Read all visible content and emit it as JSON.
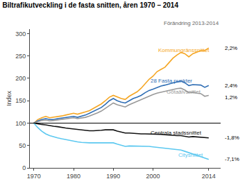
{
  "chart_data": {
    "type": "line",
    "title": "Biltrafikutveckling i de fasta snitten, åren 1970 – 2014",
    "subtitle": "Förändring 2013-2014",
    "ylabel": "Index",
    "x": [
      1970,
      1971,
      1972,
      1973,
      1974,
      1975,
      1976,
      1977,
      1978,
      1979,
      1980,
      1981,
      1982,
      1983,
      1984,
      1985,
      1986,
      1987,
      1988,
      1989,
      1990,
      1991,
      1992,
      1993,
      1994,
      1995,
      1996,
      1997,
      1998,
      1999,
      2000,
      2001,
      2002,
      2003,
      2004,
      2005,
      2006,
      2007,
      2008,
      2009,
      2010,
      2011,
      2012,
      2013,
      2014
    ],
    "series": [
      {
        "name": "Kommungränssnittet",
        "color": "#f5a623",
        "label": {
          "x": 2001,
          "y": 263
        },
        "change": {
          "text": "2,2%",
          "y": 268
        },
        "values": [
          100,
          108,
          112,
          115,
          112,
          113,
          115,
          116,
          118,
          120,
          122,
          120,
          122,
          125,
          128,
          133,
          138,
          143,
          150,
          158,
          162,
          158,
          155,
          153,
          160,
          165,
          170,
          178,
          188,
          198,
          205,
          215,
          220,
          225,
          235,
          245,
          252,
          258,
          255,
          248,
          255,
          258,
          262,
          262,
          268
        ]
      },
      {
        "name": "28 Fasta punkter",
        "color": "#2e6db4",
        "label": {
          "x": 1999,
          "y": 195
        },
        "change": {
          "text": "2,4%",
          "y": 184
        },
        "values": [
          100,
          105,
          108,
          110,
          108,
          108,
          110,
          111,
          112,
          114,
          115,
          113,
          115,
          118,
          122,
          126,
          130,
          135,
          142,
          150,
          155,
          150,
          147,
          145,
          150,
          155,
          158,
          162,
          168,
          173,
          176,
          180,
          183,
          185,
          188,
          190,
          192,
          194,
          190,
          184,
          186,
          186,
          185,
          180,
          184
        ]
      },
      {
        "name": "Götaälvsnittet",
        "color": "#999999",
        "label": {
          "x": 2003,
          "y": 170
        },
        "change": {
          "text": "1,2%",
          "y": 157
        },
        "values": [
          100,
          103,
          106,
          107,
          105,
          106,
          107,
          108,
          109,
          111,
          112,
          110,
          111,
          113,
          116,
          119,
          123,
          127,
          133,
          140,
          145,
          141,
          138,
          136,
          141,
          145,
          148,
          152,
          157,
          161,
          164,
          167,
          169,
          171,
          174,
          175,
          177,
          178,
          174,
          168,
          169,
          167,
          166,
          160,
          162
        ]
      },
      {
        "name": "Centrala stadssnittet",
        "color": "#111111",
        "label": {
          "x": 1999,
          "y": 79
        },
        "change": {
          "text": "-1,8%",
          "y": 67
        },
        "values": [
          100,
          98,
          97,
          96,
          94,
          93,
          92,
          90,
          89,
          88,
          87,
          85,
          84,
          83,
          83,
          83,
          83,
          84,
          85,
          85,
          85,
          82,
          80,
          78,
          78,
          77,
          76,
          76,
          76,
          76,
          76,
          75,
          75,
          74,
          73,
          73,
          72,
          72,
          71,
          69,
          70,
          69,
          68,
          68,
          67
        ]
      },
      {
        "name": "Citysnittet",
        "color": "#5bc8f0",
        "label": {
          "x": 2006,
          "y": 29
        },
        "change": {
          "text": "-7,1%",
          "y": 19
        },
        "values": [
          100,
          90,
          82,
          76,
          72,
          69,
          67,
          65,
          63,
          61,
          60,
          58,
          57,
          56,
          56,
          56,
          56,
          57,
          57,
          57,
          56,
          53,
          50,
          48,
          49,
          49,
          49,
          49,
          49,
          48,
          47,
          46,
          45,
          44,
          43,
          42,
          41,
          40,
          37,
          34,
          31,
          27,
          24,
          21,
          19
        ]
      }
    ],
    "reference_line": 100,
    "xlim": [
      1969,
      2017
    ],
    "xticks": [
      1970,
      1980,
      1990,
      2000,
      2014
    ],
    "ylim": [
      0,
      310
    ],
    "yticks": [
      0,
      50,
      100,
      150,
      200,
      250,
      300
    ],
    "grid": false
  }
}
